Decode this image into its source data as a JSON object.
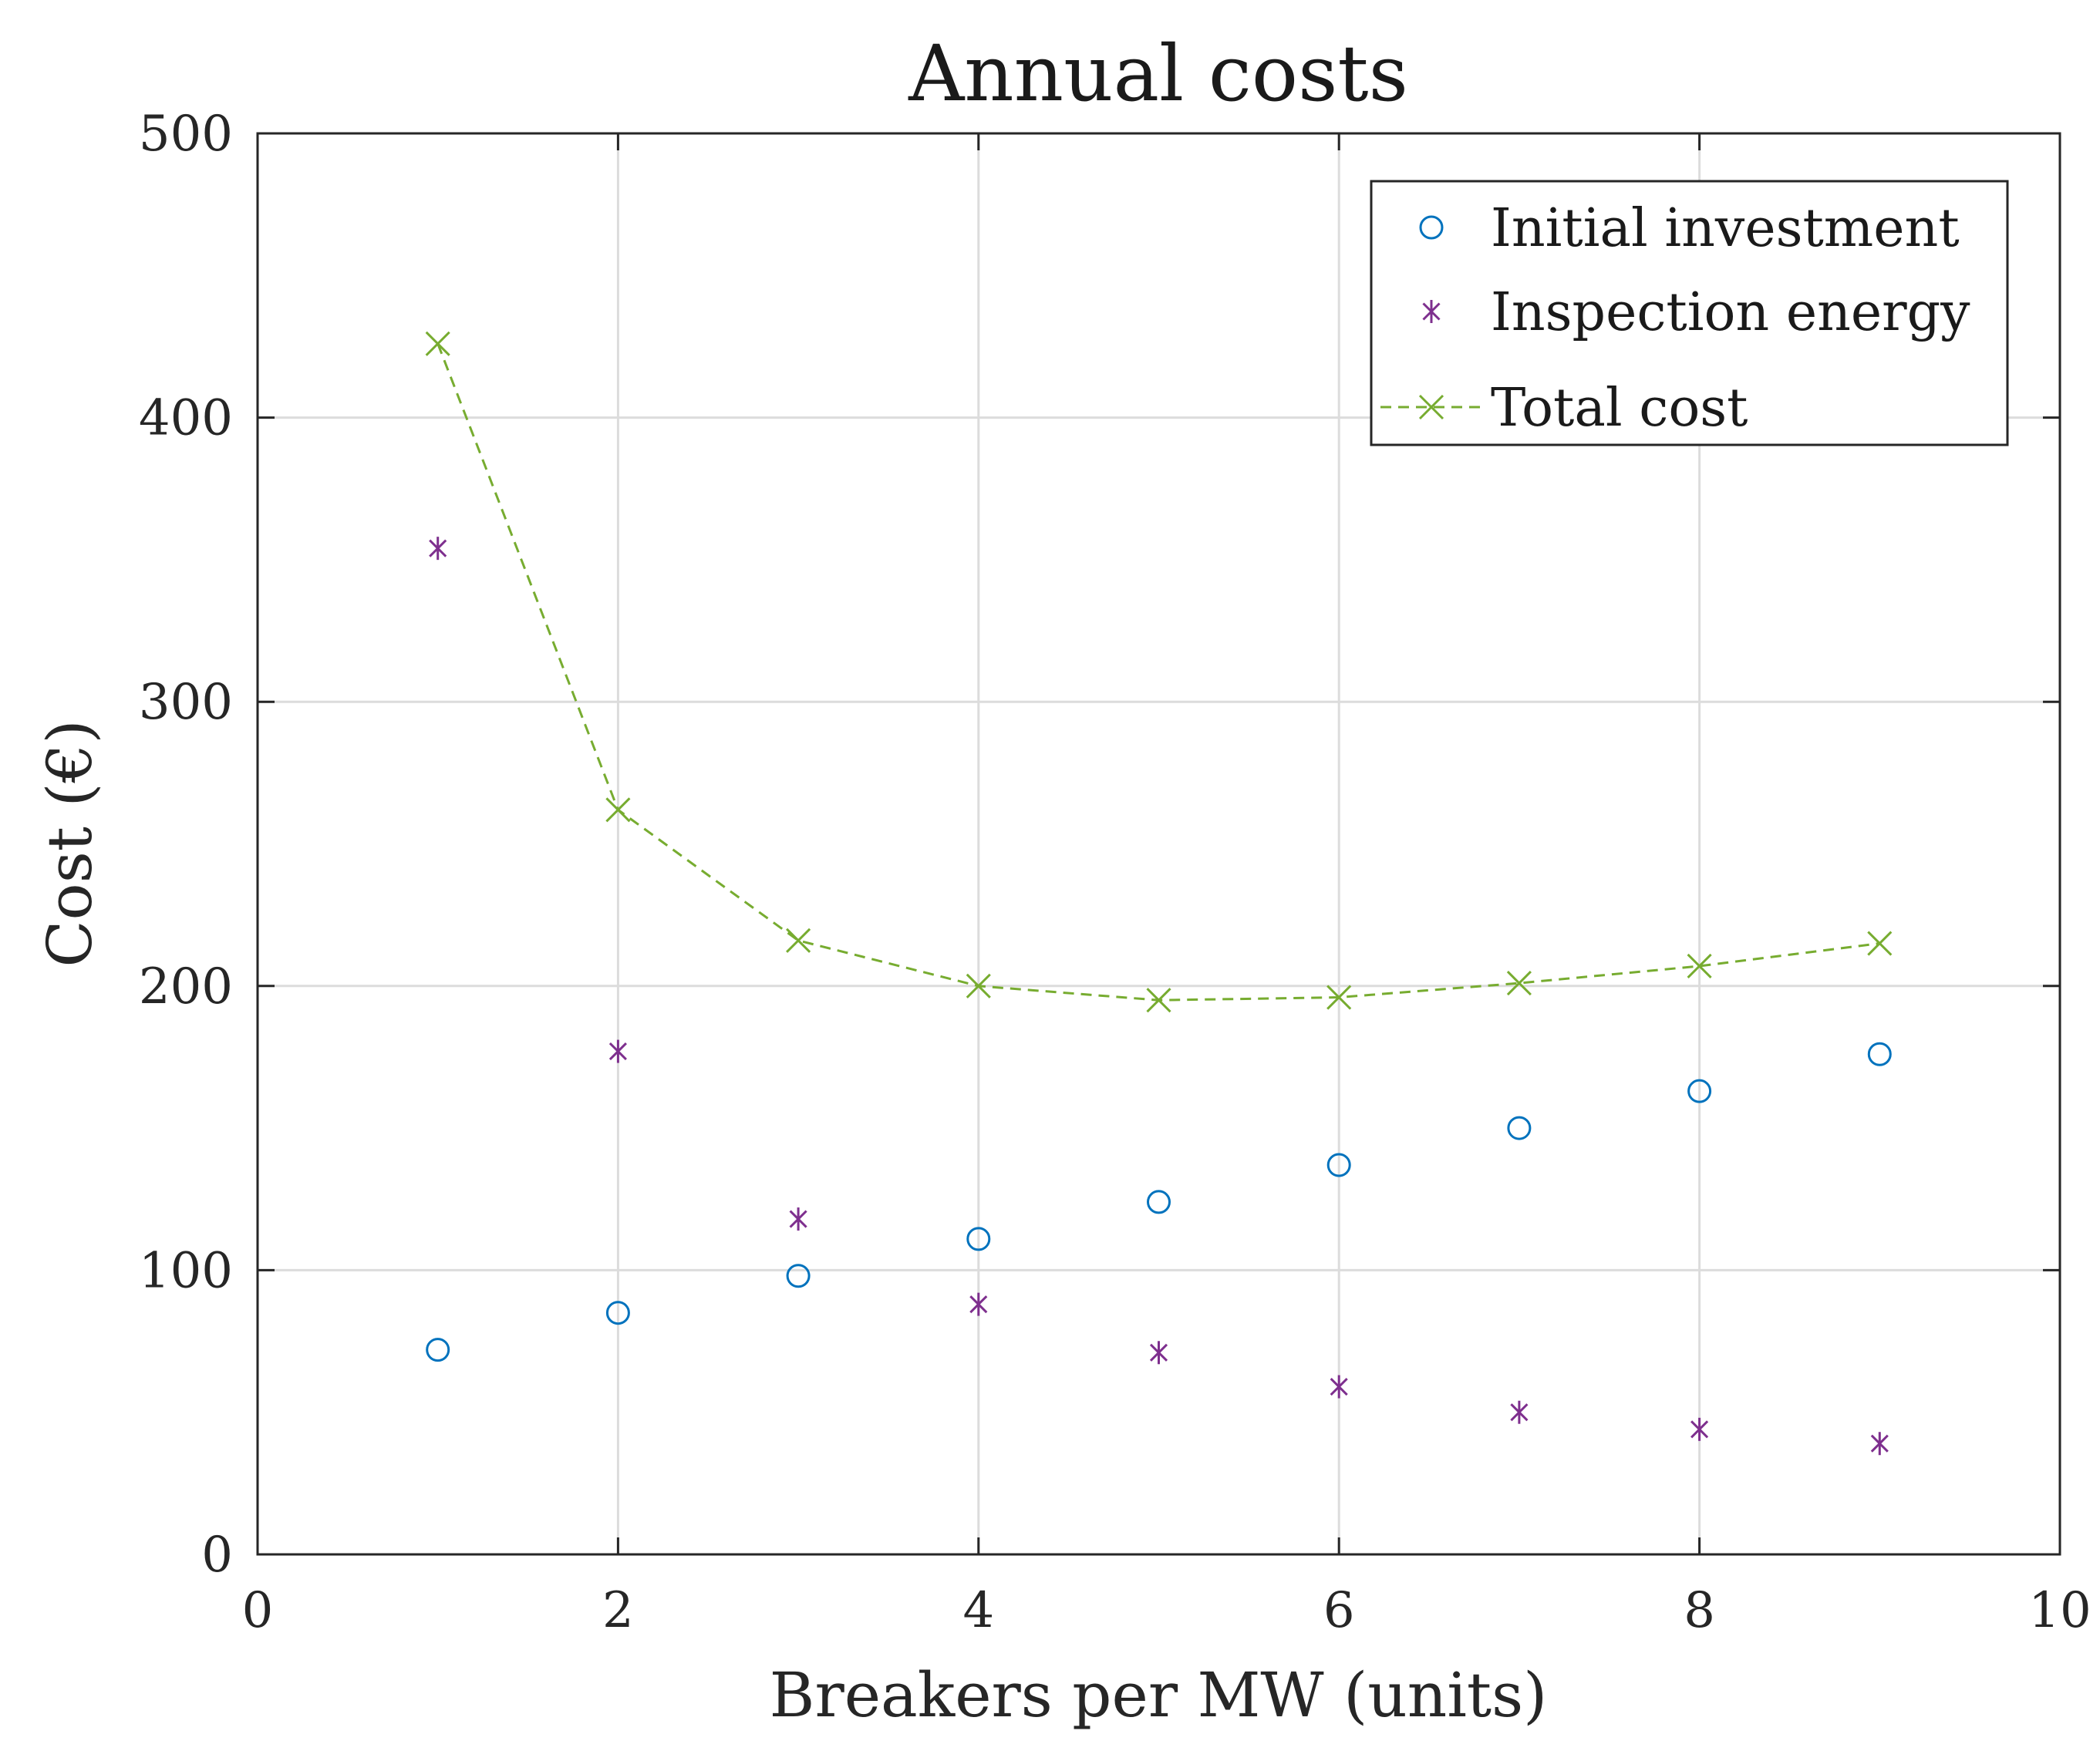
{
  "chart_data": {
    "type": "scatter",
    "title": "Annual costs",
    "xlabel": "Breakers per MW (units)",
    "ylabel": "Cost (€)",
    "xlim": [
      0,
      10
    ],
    "ylim": [
      0,
      500
    ],
    "xticks": [
      "0",
      "2",
      "4",
      "6",
      "8",
      "10"
    ],
    "yticks": [
      "0",
      "100",
      "200",
      "300",
      "400",
      "500"
    ],
    "grid": true,
    "legend_position": "top-right",
    "x": [
      1,
      2,
      3,
      4,
      5,
      6,
      7,
      8,
      9
    ],
    "series": [
      {
        "name": "Initial investment",
        "marker": "circle",
        "line": "none",
        "color": "#0072BD",
        "values": [
          72,
          85,
          98,
          111,
          124,
          137,
          150,
          163,
          176
        ]
      },
      {
        "name": "Inspection energy",
        "marker": "asterisk",
        "line": "none",
        "color": "#7E2F8E",
        "values": [
          354,
          177,
          118,
          88,
          71,
          59,
          50,
          44,
          39
        ]
      },
      {
        "name": "Total cost",
        "marker": "x",
        "line": "dashed",
        "color": "#77AC30",
        "values": [
          426,
          262,
          216,
          200,
          195,
          196,
          201,
          207,
          215
        ]
      }
    ]
  }
}
